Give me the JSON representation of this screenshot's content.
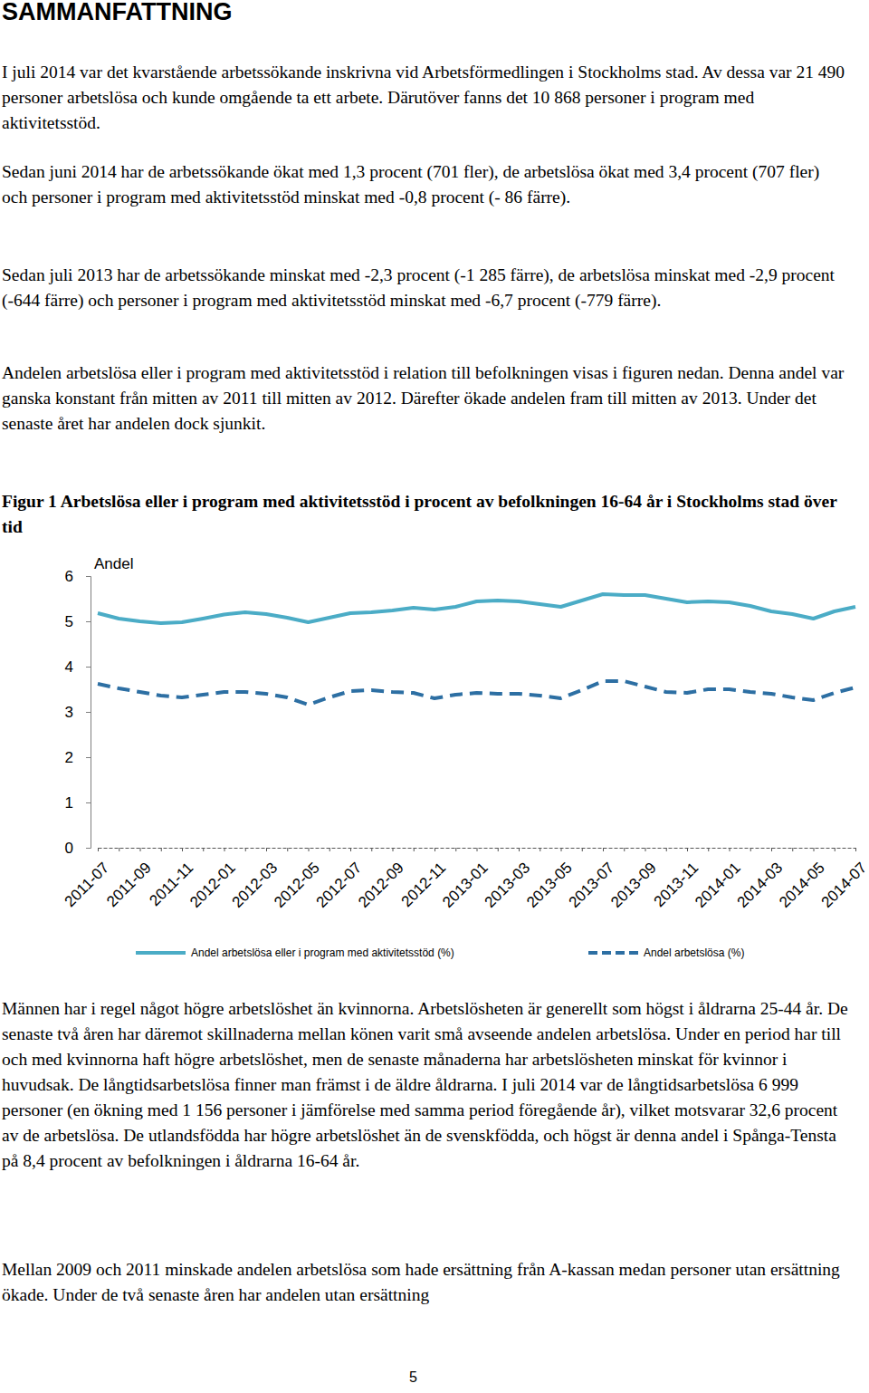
{
  "document": {
    "heading": "SAMMANFATTNING",
    "paragraphs": [
      "I juli 2014 var det  kvarstående arbetssökande inskrivna vid Arbetsförmedlingen i Stockholms stad. Av dessa var 21 490 personer arbetslösa och kunde omgående ta ett arbete. Därutöver fanns det 10 868 personer i program med aktivitetsstöd.",
      "Sedan juni 2014 har de arbetssökande ökat med 1,3 procent (701 fler), de arbetslösa ökat med 3,4 procent (707 fler) och personer i program med aktivitetsstöd minskat med -0,8 procent (- 86 färre).",
      "Sedan juli 2013 har de arbetssökande minskat med -2,3 procent (-1 285 färre), de arbetslösa minskat med -2,9 procent (-644 färre) och personer i program med aktivitetsstöd minskat med -6,7 procent (-779 färre).",
      "Andelen arbetslösa eller i program med aktivitetsstöd i relation till befolkningen visas i figuren nedan. Denna andel var ganska konstant från mitten av 2011 till mitten av 2012. Därefter ökade andelen fram till mitten av 2013. Under det senaste året har andelen dock sjunkit.",
      "Männen har i regel något högre arbetslöshet än kvinnorna. Arbetslösheten är generellt som högst i åldrarna 25-44 år. De senaste två åren har däremot skillnaderna mellan könen varit små avseende andelen arbetslösa. Under en period har till och med kvinnorna haft högre arbetslöshet, men de senaste månaderna har arbetslösheten minskat för kvinnor i huvudsak. De långtidsarbetslösa finner man främst i de äldre åldrarna. I juli 2014 var de långtidsarbetslösa 6 999 personer (en ökning med 1 156 personer i jämförelse med samma period föregående år), vilket motsvarar 32,6 procent av de arbetslösa. De utlandsfödda har högre arbetslöshet än de svenskfödda, och högst är denna andel i Spånga-Tensta på 8,4 procent av befolkningen i åldrarna 16-64 år.",
      "Mellan 2009 och 2011 minskade andelen arbetslösa som hade ersättning från A-kassan medan personer utan ersättning ökade. Under de två senaste åren har andelen utan ersättning"
    ],
    "figure_caption": "Figur 1 Arbetslösa eller i program med aktivitetsstöd i procent av befolkningen 16-64 år i Stockholms stad över tid",
    "page_number": "5"
  },
  "chart_data": {
    "type": "line",
    "y_label": "Andel",
    "categories": [
      "2011-07",
      null,
      "2011-09",
      null,
      "2011-11",
      null,
      "2012-01",
      null,
      "2012-03",
      null,
      "2012-05",
      null,
      "2012-07",
      null,
      "2012-09",
      null,
      "2012-11",
      null,
      "2013-01",
      null,
      "2013-03",
      null,
      "2013-05",
      null,
      "2013-07",
      null,
      "2013-09",
      null,
      "2013-11",
      null,
      "2014-01",
      null,
      "2014-03",
      null,
      "2014-05",
      null,
      "2014-07"
    ],
    "series": [
      {
        "name": "Andel arbetslösa eller i program med aktivitetsstöd (%)",
        "color": "#4bacc6",
        "line_style": "solid",
        "values": [
          5.18,
          5.06,
          5.0,
          4.96,
          4.98,
          5.06,
          5.15,
          5.2,
          5.16,
          5.08,
          4.98,
          5.08,
          5.18,
          5.2,
          5.24,
          5.3,
          5.26,
          5.32,
          5.44,
          5.46,
          5.44,
          5.38,
          5.32,
          5.46,
          5.6,
          5.58,
          5.58,
          5.5,
          5.42,
          5.44,
          5.42,
          5.34,
          5.22,
          5.16,
          5.06,
          5.22,
          5.32
        ]
      },
      {
        "name": "Andel arbetslösa (%)",
        "color": "#2d6fa3",
        "line_style": "dashed",
        "values": [
          3.62,
          3.52,
          3.44,
          3.36,
          3.32,
          3.38,
          3.44,
          3.44,
          3.4,
          3.32,
          3.16,
          3.32,
          3.46,
          3.48,
          3.44,
          3.42,
          3.3,
          3.38,
          3.42,
          3.4,
          3.4,
          3.36,
          3.3,
          3.48,
          3.68,
          3.68,
          3.56,
          3.44,
          3.42,
          3.5,
          3.5,
          3.44,
          3.4,
          3.32,
          3.26,
          3.42,
          3.54
        ]
      }
    ],
    "ylim": [
      0,
      6
    ],
    "yticks": [
      0,
      1,
      2,
      3,
      4,
      5,
      6
    ],
    "grid": false,
    "legend": "bottom"
  }
}
